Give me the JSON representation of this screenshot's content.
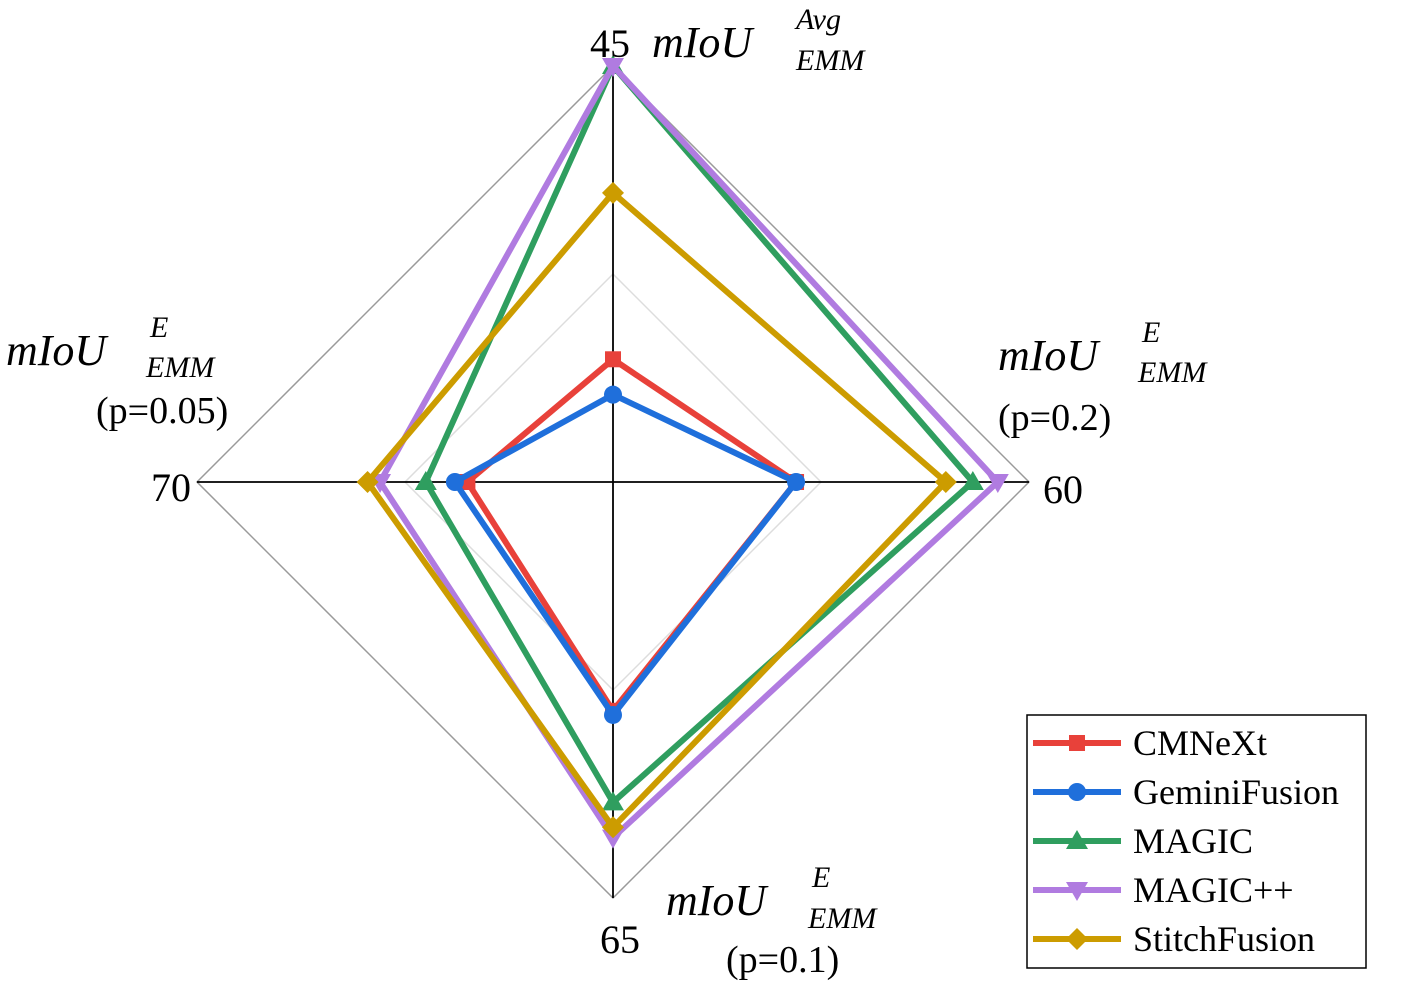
{
  "chart_data": {
    "type": "radar",
    "axes": [
      {
        "main": "mIoU",
        "sub": "EMM",
        "sup": "Avg",
        "param": "",
        "outer_tick": "45"
      },
      {
        "main": "mIoU",
        "sub": "EMM",
        "sup": "E",
        "param": "(p=0.2)",
        "outer_tick": "60"
      },
      {
        "main": "mIoU",
        "sub": "EMM",
        "sup": "E",
        "param": "(p=0.1)",
        "outer_tick": "65"
      },
      {
        "main": "mIoU",
        "sub": "EMM",
        "sup": "E",
        "param": "(p=0.05)",
        "outer_tick": "70"
      }
    ],
    "series": [
      {
        "name": "CMNeXt",
        "color": "#e8413a",
        "marker": "square",
        "values": [
          0.295,
          0.44,
          0.55,
          0.35
        ]
      },
      {
        "name": "GeminiFusion",
        "color": "#1f6fdb",
        "marker": "circle",
        "values": [
          0.21,
          0.44,
          0.56,
          0.38
        ]
      },
      {
        "name": "MAGIC",
        "color": "#2f9e5f",
        "marker": "triangle-up",
        "values": [
          1.0,
          0.865,
          0.77,
          0.45
        ]
      },
      {
        "name": "MAGIC++",
        "color": "#b07be0",
        "marker": "triangle-down",
        "values": [
          1.0,
          0.925,
          0.855,
          0.56
        ]
      },
      {
        "name": "StitchFusion",
        "color": "#cc9c00",
        "marker": "diamond",
        "values": [
          0.695,
          0.8,
          0.83,
          0.59
        ]
      }
    ],
    "grid_levels": [
      0.5,
      1.0
    ],
    "legend_position": "bottom-right"
  }
}
